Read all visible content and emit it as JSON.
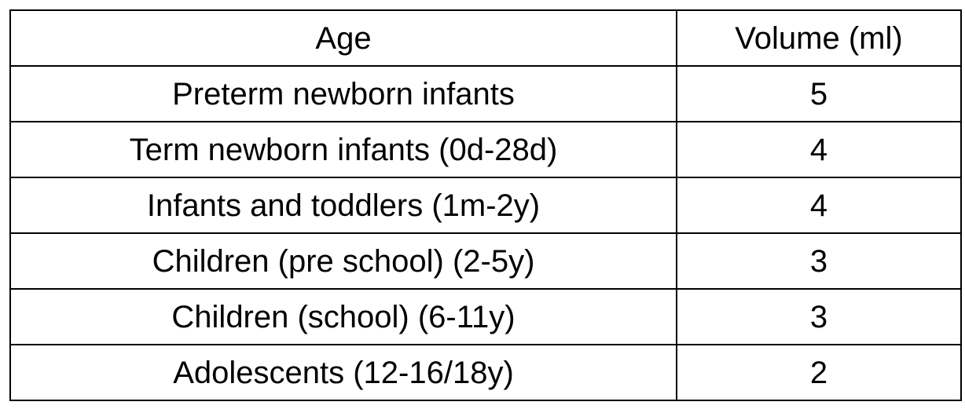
{
  "table": {
    "headers": [
      "Age",
      "Volume (ml)"
    ],
    "rows": [
      [
        "Preterm newborn infants",
        "5"
      ],
      [
        "Term newborn infants (0d-28d)",
        "4"
      ],
      [
        "Infants and toddlers (1m-2y)",
        "4"
      ],
      [
        "Children (pre school) (2-5y)",
        "3"
      ],
      [
        "Children (school) (6-11y)",
        "3"
      ],
      [
        "Adolescents (12-16/18y)",
        "2"
      ]
    ]
  }
}
